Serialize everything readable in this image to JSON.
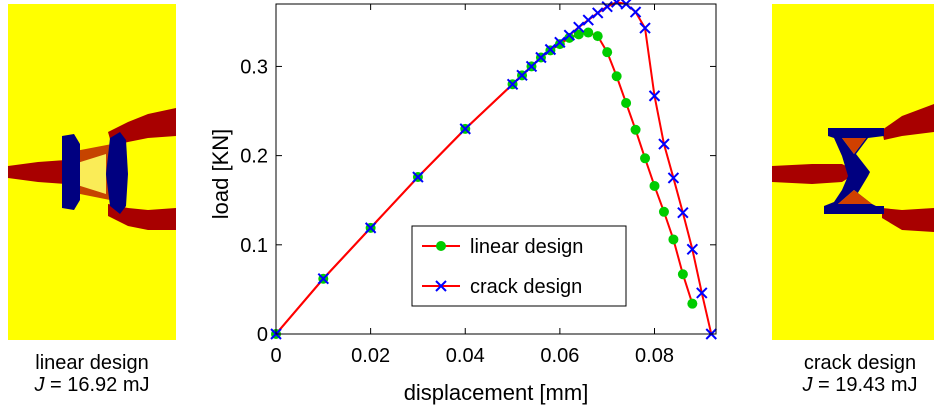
{
  "left_design": {
    "caption": "linear design",
    "energy_symbol": "J",
    "energy_value": "= 16.92 mJ"
  },
  "right_design": {
    "caption": "crack design",
    "energy_symbol": "J",
    "energy_value": "= 19.43 mJ"
  },
  "colors": {
    "background_field": "#ffff00",
    "crack": "#a80000",
    "void": "#000080",
    "linear": "#ff0000",
    "crack_series": "#0000ff",
    "marker_linear": "#00cc00"
  },
  "chart_data": {
    "type": "line",
    "xlabel": "displacement [mm]",
    "ylabel": "load [KN]",
    "xlim": [
      0,
      0.093
    ],
    "ylim": [
      0,
      0.37
    ],
    "xticks": [
      0,
      0.02,
      0.04,
      0.06,
      0.08
    ],
    "xtick_labels": [
      "0",
      "0.02",
      "0.04",
      "0.06",
      "0.08"
    ],
    "yticks": [
      0,
      0.1,
      0.2,
      0.3
    ],
    "ytick_labels": [
      "0",
      "0.1",
      "0.2",
      "0.3"
    ],
    "legend_position": "bottom-right",
    "series": [
      {
        "name": "linear design",
        "marker": "circle",
        "x": [
          0,
          0.01,
          0.02,
          0.03,
          0.04,
          0.05,
          0.052,
          0.054,
          0.056,
          0.058,
          0.06,
          0.062,
          0.064,
          0.066,
          0.068,
          0.07,
          0.072,
          0.074,
          0.076,
          0.078,
          0.08,
          0.082,
          0.084,
          0.086,
          0.088
        ],
        "y": [
          0,
          0.062,
          0.119,
          0.176,
          0.23,
          0.28,
          0.29,
          0.3,
          0.31,
          0.318,
          0.325,
          0.332,
          0.336,
          0.338,
          0.334,
          0.316,
          0.289,
          0.259,
          0.229,
          0.197,
          0.166,
          0.137,
          0.106,
          0.067,
          0.034
        ]
      },
      {
        "name": "crack design",
        "marker": "x",
        "x": [
          0,
          0.01,
          0.02,
          0.03,
          0.04,
          0.05,
          0.052,
          0.054,
          0.056,
          0.058,
          0.06,
          0.062,
          0.064,
          0.066,
          0.068,
          0.07,
          0.072,
          0.074,
          0.076,
          0.078,
          0.08,
          0.082,
          0.084,
          0.086,
          0.088,
          0.09,
          0.092
        ],
        "y": [
          0,
          0.062,
          0.119,
          0.176,
          0.23,
          0.28,
          0.29,
          0.3,
          0.31,
          0.319,
          0.327,
          0.335,
          0.344,
          0.352,
          0.36,
          0.367,
          0.372,
          0.37,
          0.361,
          0.343,
          0.267,
          0.213,
          0.175,
          0.136,
          0.095,
          0.046,
          0.0
        ]
      }
    ]
  }
}
